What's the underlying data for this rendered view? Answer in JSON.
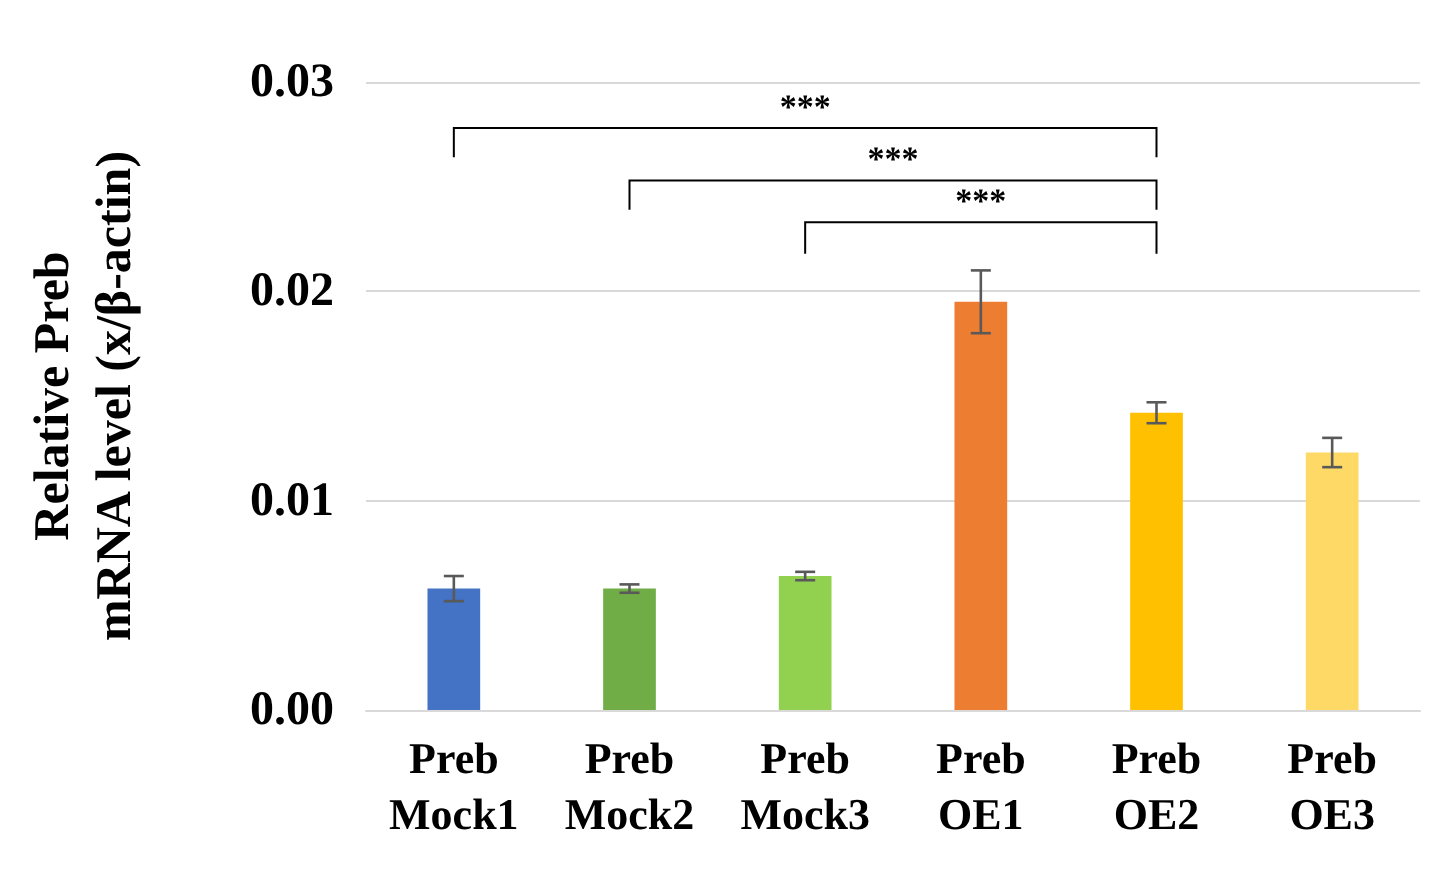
{
  "chart_data": {
    "type": "bar",
    "ylabel": "Relative Preb\nmRNA level (x/β-actin)",
    "categories": [
      "Preb\nMock1",
      "Preb\nMock2",
      "Preb\nMock3",
      "Preb\nOE1",
      "Preb\nOE2",
      "Preb\nOE3"
    ],
    "values": [
      0.0058,
      0.0058,
      0.0064,
      0.0195,
      0.0142,
      0.0123
    ],
    "colors": [
      "#4472c4",
      "#70ad47",
      "#92d050",
      "#ed7d31",
      "#ffc000",
      "#ffd966"
    ],
    "errors": [
      0.0006,
      0.0002,
      0.0002,
      0.0015,
      0.0005,
      0.0007
    ],
    "ylim": [
      0,
      0.03
    ],
    "yticks": [
      {
        "value": 0,
        "label": "0.00"
      },
      {
        "value": 0.01,
        "label": "0.01"
      },
      {
        "value": 0.02,
        "label": "0.02"
      },
      {
        "value": 0.03,
        "label": "0.03"
      }
    ],
    "annotations": [
      "***",
      "***",
      "***"
    ],
    "grid": "y"
  }
}
